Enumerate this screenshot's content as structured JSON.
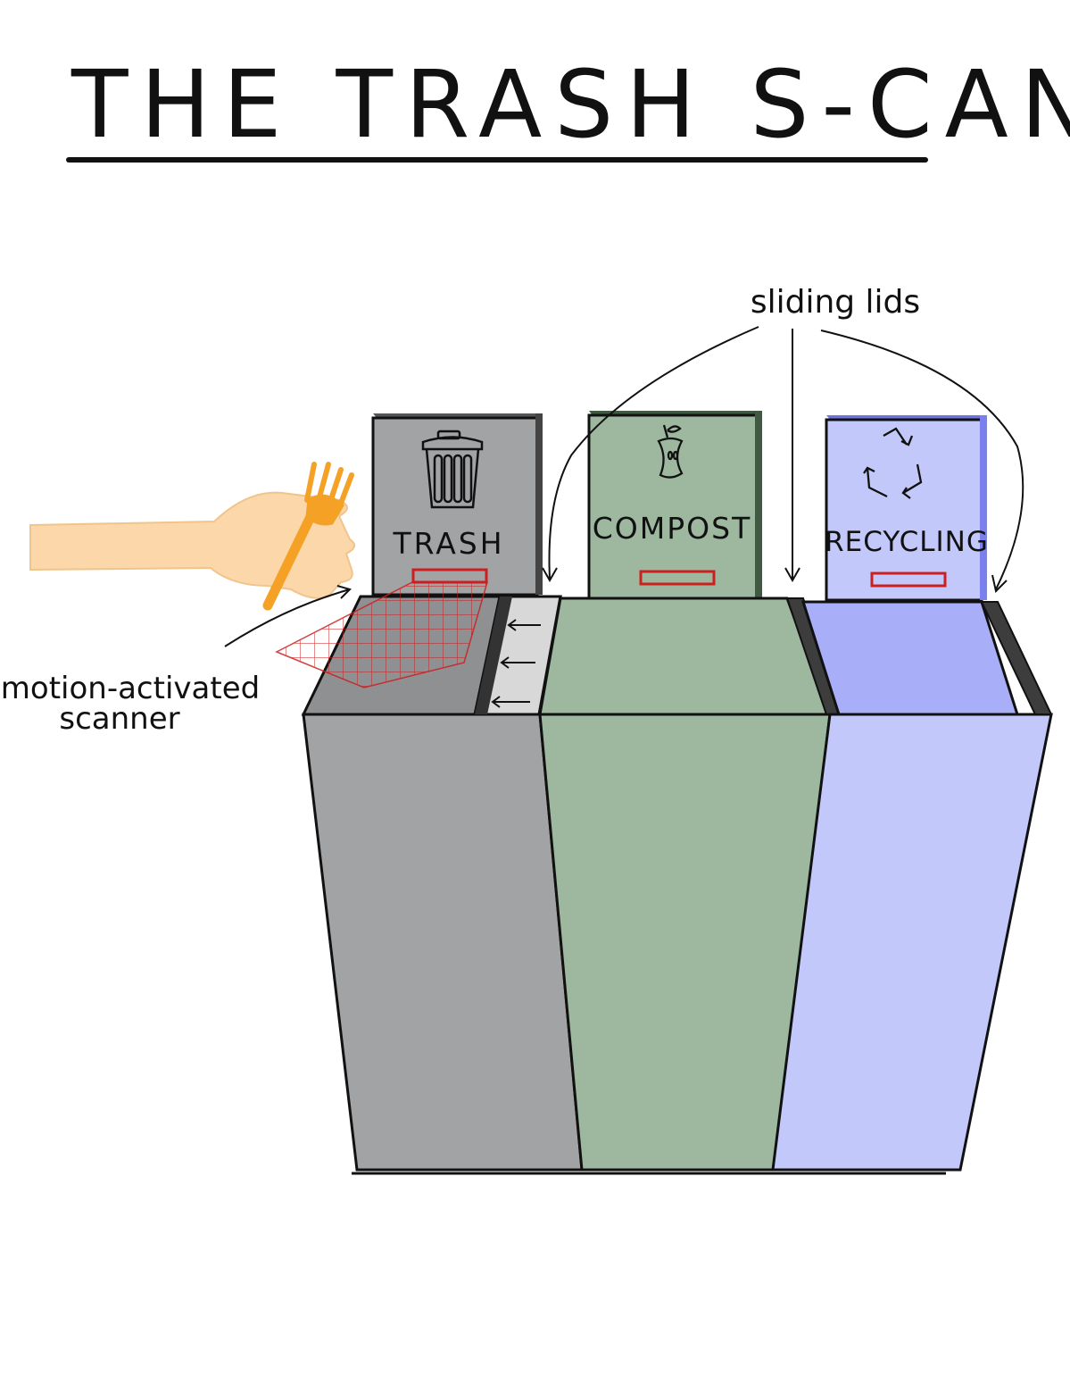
{
  "title": "THE TRASH S-CAN",
  "bins": {
    "trash": {
      "label": "TRASH",
      "icon": "trash-can-icon"
    },
    "compost": {
      "label": "COMPOST",
      "icon": "apple-core-icon"
    },
    "recycling": {
      "label": "RECYCLING",
      "icon": "recycle-icon"
    }
  },
  "annotations": {
    "sliding_lids": "sliding lids",
    "scanner_line1": "motion-activated",
    "scanner_line2": "scanner"
  },
  "colors": {
    "trash_gray": "#a2a3a5",
    "compost_green": "#9db89f",
    "recycling_blue": "#c3c8fb",
    "recycling_lid_blue": "#a8aef8",
    "scanner_red": "#cc1f1f",
    "hand_skin": "#fcd7a9",
    "fork_orange": "#f4a126"
  }
}
